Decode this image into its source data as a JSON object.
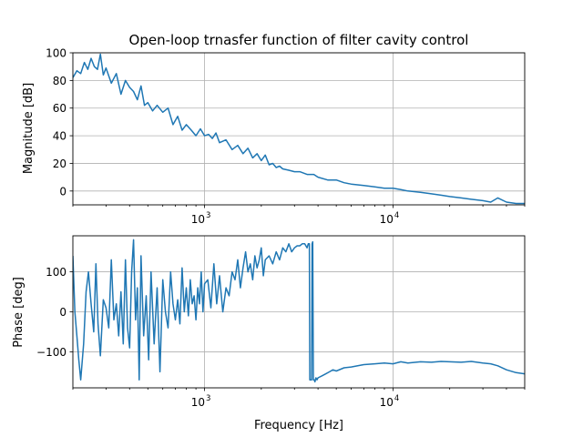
{
  "chart_data": [
    {
      "type": "line",
      "title": "Open-loop trnasfer function of filter cavity control",
      "xlabel": "",
      "ylabel": "Magnitude [dB]",
      "xscale": "log",
      "xlim": [
        200,
        50000
      ],
      "ylim": [
        -10,
        100
      ],
      "yticks": [
        "0",
        "20",
        "40",
        "60",
        "80",
        "100"
      ],
      "xticks": [
        {
          "base": "10",
          "exp": "3"
        },
        {
          "base": "10",
          "exp": "4"
        }
      ],
      "grid": true,
      "color": "#1f77b4",
      "series": [
        {
          "x": [
            200,
            210,
            220,
            230,
            240,
            250,
            260,
            270,
            280,
            290,
            300,
            320,
            340,
            360,
            380,
            400,
            420,
            440,
            460,
            480,
            500,
            530,
            560,
            600,
            640,
            680,
            720,
            760,
            800,
            850,
            900,
            950,
            1000,
            1050,
            1100,
            1150,
            1200,
            1300,
            1400,
            1500,
            1600,
            1700,
            1800,
            1900,
            2000,
            2100,
            2200,
            2300,
            2400,
            2500,
            2600,
            2800,
            3000,
            3200,
            3500,
            3800,
            4000,
            4500,
            5000,
            5500,
            6000,
            7000,
            8000,
            9000,
            10000,
            11000,
            12000,
            14000,
            16000,
            18000,
            20000,
            23000,
            26000,
            30000,
            33000,
            36000,
            40000,
            45000,
            50000
          ],
          "y": [
            82,
            87,
            85,
            93,
            88,
            96,
            90,
            88,
            99,
            84,
            89,
            78,
            85,
            70,
            80,
            75,
            72,
            66,
            76,
            62,
            64,
            58,
            62,
            57,
            60,
            48,
            54,
            44,
            48,
            44,
            40,
            45,
            40,
            41,
            38,
            42,
            35,
            37,
            30,
            33,
            27,
            31,
            24,
            27,
            22,
            26,
            19,
            20,
            17,
            18,
            16,
            15,
            14,
            14,
            12,
            12,
            10,
            8,
            8,
            6,
            5,
            4,
            3,
            2,
            2,
            1,
            0,
            -1,
            -2,
            -3,
            -4,
            -5,
            -6,
            -7,
            -8,
            -5,
            -8,
            -9,
            -9
          ]
        }
      ]
    },
    {
      "type": "line",
      "title": "",
      "xlabel": "Frequency [Hz]",
      "ylabel": "Phase [deg]",
      "xscale": "log",
      "xlim": [
        200,
        50000
      ],
      "ylim": [
        -190,
        190
      ],
      "yticks": [
        "100",
        "0",
        "−100"
      ],
      "xticks": [
        {
          "base": "10",
          "exp": "3"
        },
        {
          "base": "10",
          "exp": "4"
        }
      ],
      "grid": true,
      "color": "#1f77b4",
      "series": [
        {
          "x": [
            200,
            205,
            210,
            215,
            220,
            228,
            235,
            242,
            250,
            258,
            265,
            272,
            280,
            290,
            300,
            310,
            320,
            330,
            340,
            350,
            360,
            370,
            380,
            390,
            400,
            410,
            420,
            430,
            440,
            450,
            460,
            475,
            490,
            505,
            520,
            540,
            560,
            580,
            600,
            620,
            640,
            660,
            680,
            700,
            720,
            740,
            760,
            780,
            800,
            820,
            840,
            860,
            880,
            900,
            920,
            940,
            960,
            980,
            1000,
            1040,
            1080,
            1120,
            1160,
            1200,
            1250,
            1300,
            1350,
            1400,
            1450,
            1500,
            1550,
            1600,
            1650,
            1700,
            1750,
            1800,
            1850,
            1900,
            1950,
            2000,
            2050,
            2100,
            2200,
            2300,
            2400,
            2500,
            2600,
            2700,
            2800,
            2900,
            3000,
            3100,
            3200,
            3300,
            3400,
            3500,
            3550,
            3600,
            3620,
            3650,
            3700,
            3720,
            3750,
            3780,
            3820,
            3850,
            3900,
            3950,
            4000,
            4200,
            4400,
            4600,
            4800,
            5000,
            5500,
            6000,
            6500,
            7000,
            8000,
            9000,
            10000,
            11000,
            12000,
            14000,
            16000,
            18000,
            20000,
            23000,
            26000,
            30000,
            33000,
            36000,
            40000,
            45000,
            50000
          ],
          "y": [
            140,
            0,
            -60,
            -120,
            -170,
            -80,
            50,
            100,
            20,
            -50,
            120,
            -30,
            -110,
            30,
            10,
            -40,
            130,
            -20,
            20,
            -60,
            50,
            -80,
            130,
            -40,
            -90,
            100,
            180,
            -20,
            60,
            -170,
            140,
            -60,
            40,
            -120,
            100,
            -80,
            60,
            -150,
            80,
            0,
            -40,
            100,
            20,
            -20,
            30,
            -30,
            110,
            0,
            60,
            -10,
            80,
            20,
            40,
            -20,
            60,
            20,
            100,
            0,
            70,
            80,
            10,
            120,
            20,
            90,
            0,
            60,
            40,
            100,
            80,
            130,
            60,
            110,
            150,
            100,
            120,
            80,
            140,
            110,
            130,
            160,
            90,
            130,
            140,
            120,
            150,
            130,
            160,
            150,
            170,
            150,
            160,
            165,
            165,
            170,
            170,
            160,
            170,
            170,
            -170,
            -170,
            -170,
            170,
            175,
            -170,
            -170,
            -175,
            -165,
            -170,
            -165,
            -160,
            -155,
            -150,
            -145,
            -148,
            -140,
            -138,
            -135,
            -132,
            -130,
            -128,
            -130,
            -125,
            -128,
            -125,
            -126,
            -124,
            -125,
            -126,
            -124,
            -128,
            -130,
            -135,
            -145,
            -152,
            -155
          ]
        }
      ]
    }
  ]
}
